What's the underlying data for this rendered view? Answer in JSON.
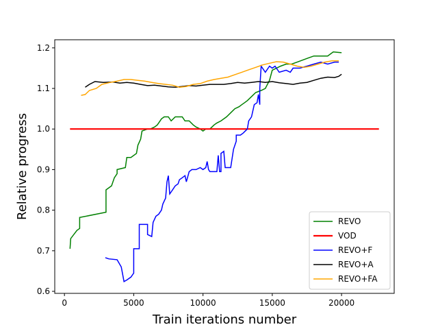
{
  "chart_data": {
    "type": "line",
    "title": "",
    "xlabel": "Train iterations number",
    "ylabel": "Relative progress",
    "xlim": [
      -700,
      23800
    ],
    "ylim": [
      0.595,
      1.22
    ],
    "x_ticks": [
      0,
      5000,
      10000,
      15000,
      20000
    ],
    "y_ticks": [
      0.6,
      0.7,
      0.8,
      0.9,
      1.0,
      1.1,
      1.2
    ],
    "x_tick_labels": [
      "0",
      "5000",
      "10000",
      "15000",
      "20000"
    ],
    "y_tick_labels": [
      "0.6",
      "0.7",
      "0.8",
      "0.9",
      "1.0",
      "1.1",
      "1.2"
    ],
    "grid": false,
    "legend_position": "lower-right",
    "series": [
      {
        "name": "REVO",
        "color": "#008000",
        "points": [
          [
            400,
            0.705
          ],
          [
            450,
            0.73
          ],
          [
            900,
            0.75
          ],
          [
            1100,
            0.755
          ],
          [
            1100,
            0.782
          ],
          [
            3000,
            0.795
          ],
          [
            3000,
            0.85
          ],
          [
            3400,
            0.86
          ],
          [
            3600,
            0.88
          ],
          [
            3800,
            0.89
          ],
          [
            3800,
            0.9
          ],
          [
            4400,
            0.905
          ],
          [
            4500,
            0.93
          ],
          [
            4800,
            0.93
          ],
          [
            5200,
            0.94
          ],
          [
            5300,
            0.96
          ],
          [
            5500,
            0.975
          ],
          [
            5600,
            0.995
          ],
          [
            6000,
            1.0
          ],
          [
            6200,
            1.0
          ],
          [
            6500,
            1.005
          ],
          [
            6700,
            1.01
          ],
          [
            6900,
            1.02
          ],
          [
            7000,
            1.025
          ],
          [
            7200,
            1.03
          ],
          [
            7500,
            1.03
          ],
          [
            7700,
            1.02
          ],
          [
            8000,
            1.03
          ],
          [
            8500,
            1.03
          ],
          [
            8700,
            1.02
          ],
          [
            9000,
            1.02
          ],
          [
            9300,
            1.01
          ],
          [
            9500,
            1.005
          ],
          [
            9800,
            1.0
          ],
          [
            10000,
            0.995
          ],
          [
            10200,
            1.0
          ],
          [
            10500,
            1.0
          ],
          [
            10800,
            1.01
          ],
          [
            11000,
            1.015
          ],
          [
            11300,
            1.02
          ],
          [
            11500,
            1.025
          ],
          [
            11700,
            1.03
          ],
          [
            12000,
            1.04
          ],
          [
            12300,
            1.05
          ],
          [
            12600,
            1.055
          ],
          [
            12800,
            1.06
          ],
          [
            13000,
            1.065
          ],
          [
            13200,
            1.07
          ],
          [
            13500,
            1.08
          ],
          [
            13800,
            1.09
          ],
          [
            14200,
            1.095
          ],
          [
            14500,
            1.1
          ],
          [
            14800,
            1.12
          ],
          [
            15000,
            1.145
          ],
          [
            15300,
            1.15
          ],
          [
            15600,
            1.155
          ],
          [
            16000,
            1.16
          ],
          [
            16400,
            1.16
          ],
          [
            16800,
            1.165
          ],
          [
            17200,
            1.17
          ],
          [
            17600,
            1.175
          ],
          [
            18000,
            1.18
          ],
          [
            18500,
            1.18
          ],
          [
            19000,
            1.18
          ],
          [
            19400,
            1.19
          ],
          [
            20000,
            1.188
          ]
        ]
      },
      {
        "name": "VOD",
        "color": "#ff0000",
        "points": [
          [
            400,
            1.0
          ],
          [
            22700,
            1.0
          ]
        ]
      },
      {
        "name": "REVO+F",
        "color": "#0000ff",
        "points": [
          [
            2950,
            0.683
          ],
          [
            3200,
            0.68
          ],
          [
            3800,
            0.678
          ],
          [
            4100,
            0.66
          ],
          [
            4300,
            0.624
          ],
          [
            4500,
            0.628
          ],
          [
            4800,
            0.635
          ],
          [
            5000,
            0.645
          ],
          [
            5000,
            0.705
          ],
          [
            5400,
            0.705
          ],
          [
            5400,
            0.765
          ],
          [
            6000,
            0.765
          ],
          [
            6000,
            0.74
          ],
          [
            6300,
            0.735
          ],
          [
            6400,
            0.77
          ],
          [
            6600,
            0.785
          ],
          [
            6800,
            0.79
          ],
          [
            7000,
            0.8
          ],
          [
            7100,
            0.815
          ],
          [
            7300,
            0.83
          ],
          [
            7400,
            0.87
          ],
          [
            7500,
            0.885
          ],
          [
            7600,
            0.84
          ],
          [
            7700,
            0.845
          ],
          [
            8000,
            0.86
          ],
          [
            8200,
            0.865
          ],
          [
            8300,
            0.875
          ],
          [
            8500,
            0.88
          ],
          [
            8700,
            0.885
          ],
          [
            8800,
            0.87
          ],
          [
            9000,
            0.895
          ],
          [
            9200,
            0.9
          ],
          [
            9500,
            0.9
          ],
          [
            9800,
            0.905
          ],
          [
            10000,
            0.9
          ],
          [
            10200,
            0.905
          ],
          [
            10300,
            0.92
          ],
          [
            10400,
            0.9
          ],
          [
            10500,
            0.895
          ],
          [
            11000,
            0.895
          ],
          [
            11100,
            0.935
          ],
          [
            11200,
            0.895
          ],
          [
            11300,
            0.895
          ],
          [
            11300,
            0.94
          ],
          [
            11500,
            0.945
          ],
          [
            11600,
            0.905
          ],
          [
            11800,
            0.905
          ],
          [
            12000,
            0.905
          ],
          [
            12200,
            0.95
          ],
          [
            12300,
            0.96
          ],
          [
            12400,
            0.97
          ],
          [
            12400,
            0.985
          ],
          [
            12700,
            0.985
          ],
          [
            12900,
            0.99
          ],
          [
            13200,
            1.0
          ],
          [
            13300,
            1.02
          ],
          [
            13500,
            1.03
          ],
          [
            13700,
            1.06
          ],
          [
            13900,
            1.065
          ],
          [
            14000,
            1.085
          ],
          [
            14100,
            1.06
          ],
          [
            14100,
            1.1
          ],
          [
            14200,
            1.155
          ],
          [
            14500,
            1.14
          ],
          [
            14800,
            1.155
          ],
          [
            15000,
            1.15
          ],
          [
            15200,
            1.155
          ],
          [
            15500,
            1.14
          ],
          [
            16000,
            1.145
          ],
          [
            16300,
            1.14
          ],
          [
            16500,
            1.15
          ],
          [
            17000,
            1.15
          ],
          [
            17500,
            1.155
          ],
          [
            18000,
            1.16
          ],
          [
            18500,
            1.165
          ],
          [
            19000,
            1.16
          ],
          [
            19500,
            1.165
          ],
          [
            19800,
            1.165
          ]
        ]
      },
      {
        "name": "REVO+A",
        "color": "#000000",
        "points": [
          [
            1500,
            1.103
          ],
          [
            1800,
            1.11
          ],
          [
            2200,
            1.117
          ],
          [
            2800,
            1.115
          ],
          [
            3500,
            1.116
          ],
          [
            4000,
            1.113
          ],
          [
            4500,
            1.115
          ],
          [
            5000,
            1.113
          ],
          [
            5500,
            1.11
          ],
          [
            6000,
            1.107
          ],
          [
            6500,
            1.108
          ],
          [
            7000,
            1.106
          ],
          [
            7500,
            1.104
          ],
          [
            8000,
            1.103
          ],
          [
            8500,
            1.105
          ],
          [
            9000,
            1.107
          ],
          [
            9500,
            1.106
          ],
          [
            10000,
            1.108
          ],
          [
            10500,
            1.11
          ],
          [
            11000,
            1.11
          ],
          [
            11500,
            1.11
          ],
          [
            12000,
            1.112
          ],
          [
            12500,
            1.115
          ],
          [
            13000,
            1.113
          ],
          [
            13500,
            1.115
          ],
          [
            14000,
            1.117
          ],
          [
            14500,
            1.115
          ],
          [
            15000,
            1.117
          ],
          [
            15500,
            1.114
          ],
          [
            16000,
            1.112
          ],
          [
            16500,
            1.11
          ],
          [
            17000,
            1.113
          ],
          [
            17500,
            1.115
          ],
          [
            18000,
            1.12
          ],
          [
            18500,
            1.125
          ],
          [
            19000,
            1.128
          ],
          [
            19500,
            1.127
          ],
          [
            19800,
            1.13
          ],
          [
            20000,
            1.135
          ]
        ]
      },
      {
        "name": "REVO+FA",
        "color": "#ffa500",
        "points": [
          [
            1200,
            1.083
          ],
          [
            1500,
            1.085
          ],
          [
            1800,
            1.095
          ],
          [
            2300,
            1.1
          ],
          [
            2700,
            1.11
          ],
          [
            3300,
            1.115
          ],
          [
            3800,
            1.118
          ],
          [
            4300,
            1.122
          ],
          [
            4800,
            1.122
          ],
          [
            5300,
            1.12
          ],
          [
            5800,
            1.118
          ],
          [
            6300,
            1.115
          ],
          [
            6800,
            1.112
          ],
          [
            7300,
            1.11
          ],
          [
            7800,
            1.108
          ],
          [
            8300,
            1.103
          ],
          [
            8800,
            1.105
          ],
          [
            9300,
            1.11
          ],
          [
            9800,
            1.112
          ],
          [
            10300,
            1.118
          ],
          [
            10800,
            1.122
          ],
          [
            11300,
            1.125
          ],
          [
            11800,
            1.128
          ],
          [
            12300,
            1.134
          ],
          [
            12800,
            1.14
          ],
          [
            13300,
            1.146
          ],
          [
            13800,
            1.152
          ],
          [
            14300,
            1.158
          ],
          [
            14800,
            1.162
          ],
          [
            15300,
            1.166
          ],
          [
            15800,
            1.165
          ],
          [
            16300,
            1.16
          ],
          [
            16800,
            1.155
          ],
          [
            17300,
            1.152
          ],
          [
            17800,
            1.155
          ],
          [
            18300,
            1.16
          ],
          [
            18800,
            1.165
          ],
          [
            19300,
            1.168
          ],
          [
            19800,
            1.168
          ]
        ]
      }
    ]
  }
}
